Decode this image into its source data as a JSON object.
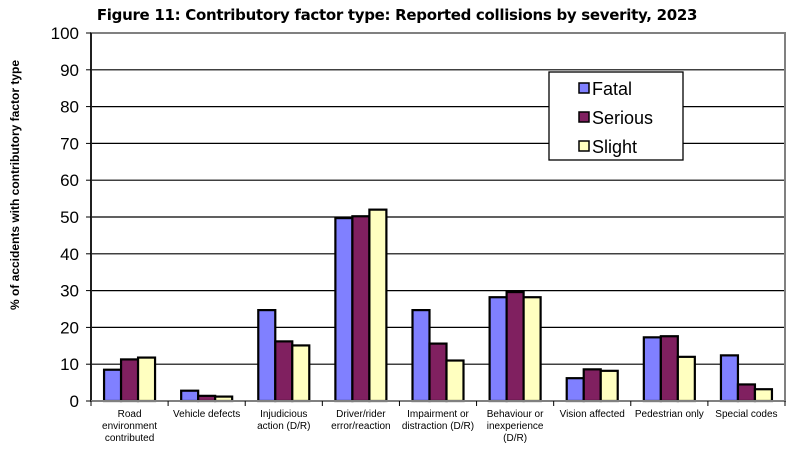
{
  "chart_data": {
    "type": "bar",
    "title": "Figure 11: Contributory factor type: Reported collisions by severity, 2023",
    "xlabel": "",
    "ylabel": "% of accidents with contributory factor type",
    "ylim": [
      0,
      100
    ],
    "yticks": [
      "0",
      "10",
      "20",
      "30",
      "40",
      "50",
      "60",
      "70",
      "80",
      "90",
      "100"
    ],
    "grid": true,
    "legend_position": "top-right",
    "categories": [
      [
        "Road",
        "environment",
        "contributed"
      ],
      [
        "Vehicle defects"
      ],
      [
        "Injudicious",
        "action (D/R)"
      ],
      [
        "Driver/rider",
        "error/reaction"
      ],
      [
        "Impairment or",
        "distraction (D/R)"
      ],
      [
        "Behaviour or",
        "inexperience",
        "(D/R)"
      ],
      [
        "Vision affected"
      ],
      [
        "Pedestrian only"
      ],
      [
        "Special codes"
      ]
    ],
    "series": [
      {
        "name": "Fatal",
        "color": "#8080FF",
        "values": [
          8.5,
          2.8,
          24.7,
          49.7,
          24.7,
          28.2,
          6.2,
          17.3,
          12.4
        ]
      },
      {
        "name": "Serious",
        "color": "#802060",
        "values": [
          11.3,
          1.4,
          16.2,
          50.2,
          15.6,
          29.6,
          8.6,
          17.6,
          4.5
        ]
      },
      {
        "name": "Slight",
        "color": "#FFFFC0",
        "values": [
          11.8,
          1.2,
          15.1,
          52.0,
          11.0,
          28.2,
          8.2,
          12.0,
          3.2
        ]
      }
    ]
  }
}
